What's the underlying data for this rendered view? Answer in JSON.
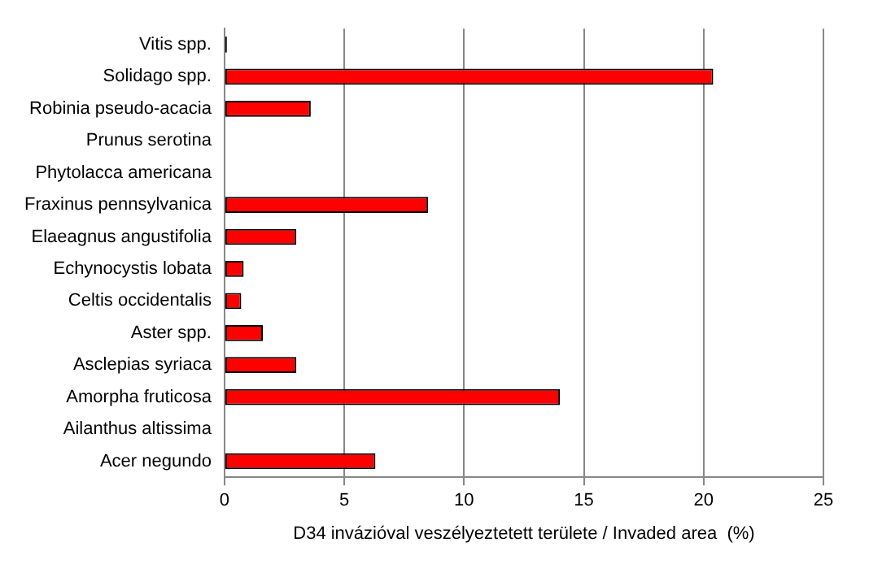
{
  "chart_data": {
    "type": "bar",
    "orientation": "horizontal",
    "xlabel": "D34 invázióval veszélyeztetett területe / Invaded area  (%)",
    "categories": [
      "Vitis spp.",
      "Solidago spp.",
      "Robinia pseudo-acacia",
      "Prunus serotina",
      "Phytolacca americana",
      "Fraxinus pennsylvanica",
      "Elaeagnus angustifolia",
      "Echynocystis lobata",
      "Celtis occidentalis",
      "Aster spp.",
      "Asclepias syriaca",
      "Amorpha fruticosa",
      "Ailanthus altissima",
      "Acer negundo"
    ],
    "values": [
      0.1,
      20.4,
      3.6,
      0,
      0,
      8.5,
      3.0,
      0.8,
      0.7,
      1.6,
      3.0,
      14.0,
      0,
      6.3
    ],
    "colors": [
      "#000000",
      "#ff0000",
      "#ff0000",
      "#ff0000",
      "#ff0000",
      "#ff0000",
      "#ff0000",
      "#ff0000",
      "#ff0000",
      "#ff0000",
      "#ff0000",
      "#ff0000",
      "#ff0000",
      "#ff0000"
    ],
    "xlim": [
      0,
      25
    ],
    "xticks": [
      0,
      5,
      10,
      15,
      20,
      25
    ],
    "grid": "x"
  }
}
